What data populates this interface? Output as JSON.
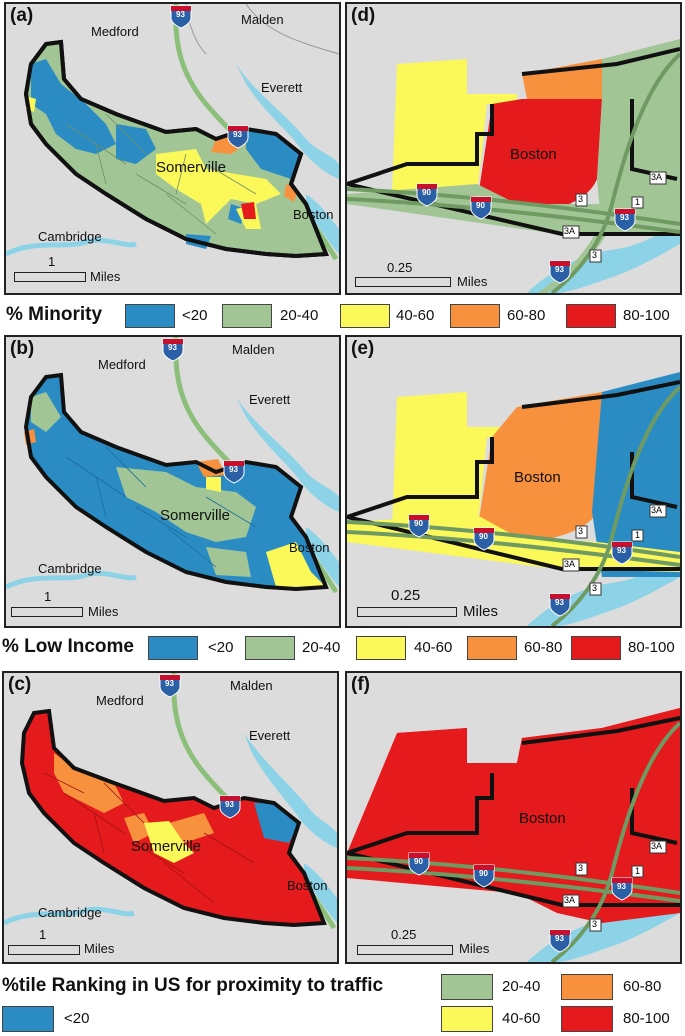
{
  "colors": {
    "blue": "#2b8cc4",
    "green": "#a2c596",
    "yellow": "#fbf95a",
    "orange": "#f7913d",
    "red": "#e41a1c",
    "water": "#8dd3e8",
    "land": "#dcdcdc",
    "road": "#8cc07a"
  },
  "panels": {
    "a": {
      "label": "(a)",
      "places": {
        "medford": "Medford",
        "malden": "Malden",
        "everett": "Everett",
        "somerville": "Somerville",
        "cambridge": "Cambridge",
        "boston": "Boston"
      },
      "scale_value": "1",
      "scale_unit": "Miles"
    },
    "b": {
      "label": "(b)",
      "places": {
        "medford": "Medford",
        "malden": "Malden",
        "everett": "Everett",
        "somerville": "Somerville",
        "cambridge": "Cambridge",
        "boston": "Boston"
      },
      "scale_value": "1",
      "scale_unit": "Miles"
    },
    "c": {
      "label": "(c)",
      "places": {
        "medford": "Medford",
        "malden": "Malden",
        "everett": "Everett",
        "somerville": "Somerville",
        "cambridge": "Cambridge",
        "boston": "Boston"
      },
      "scale_value": "1",
      "scale_unit": "Miles"
    },
    "d": {
      "label": "(d)",
      "places": {
        "boston": "Boston"
      },
      "scale_value": "0.25",
      "scale_unit": "Miles"
    },
    "e": {
      "label": "(e)",
      "places": {
        "boston": "Boston"
      },
      "scale_value": "0.25",
      "scale_unit": "Miles"
    },
    "f": {
      "label": "(f)",
      "places": {
        "boston": "Boston"
      },
      "scale_value": "0.25",
      "scale_unit": "Miles"
    }
  },
  "shields": {
    "i93": "93",
    "i90": "90",
    "r3": "3",
    "r3a": "3A",
    "r1": "1"
  },
  "legend1": {
    "title": "% Minority",
    "bins": [
      "<20",
      "20-40",
      "40-60",
      "60-80",
      "80-100"
    ]
  },
  "legend2": {
    "title": "% Low Income",
    "bins": [
      "<20",
      "20-40",
      "40-60",
      "60-80",
      "80-100"
    ]
  },
  "legend3": {
    "title": "%tile Ranking in US for proximity to traffic",
    "bins": [
      "<20",
      "20-40",
      "40-60",
      "60-80",
      "80-100"
    ]
  }
}
